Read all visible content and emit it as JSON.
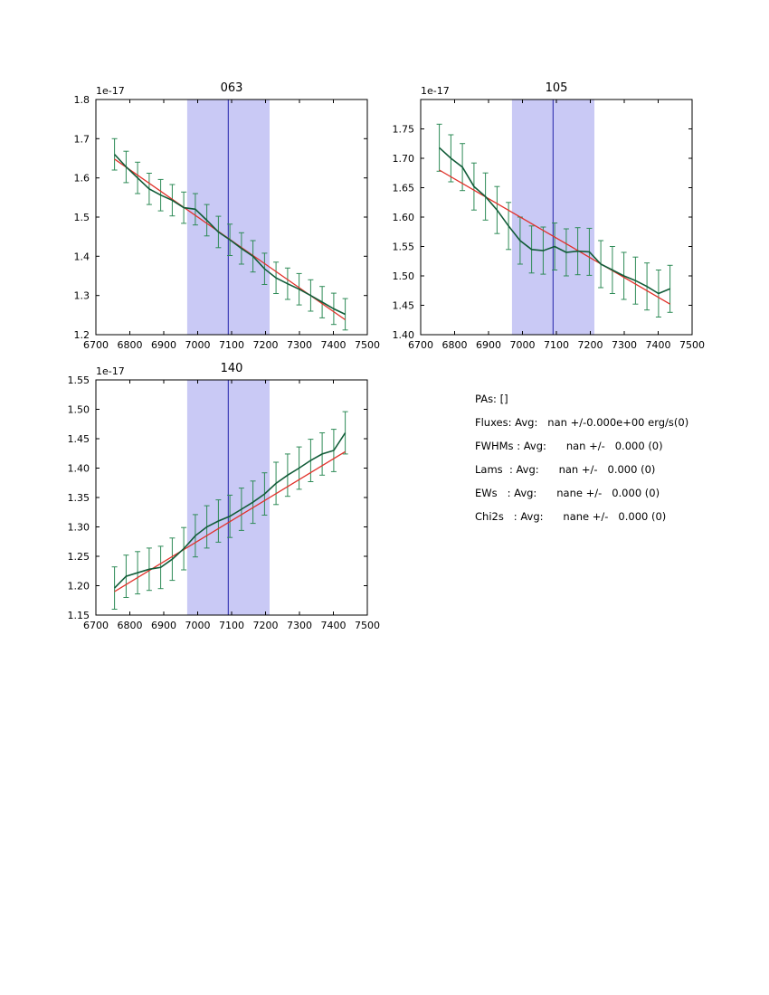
{
  "colors": {
    "data_line": "#115c38",
    "error_bar": "#2e8b57",
    "fit_line": "#e13029",
    "band_fill": "#c9c9f5",
    "vline": "#2222aa",
    "frame": "#000000"
  },
  "chart_data": [
    {
      "type": "line",
      "title": "063",
      "offset_text": "1e-17",
      "xlim": [
        6700,
        7500
      ],
      "ylim": [
        1.2,
        1.8
      ],
      "xticks": [
        6700,
        6800,
        6900,
        7000,
        7100,
        7200,
        7300,
        7400,
        7500
      ],
      "yticks": [
        1.2,
        1.3,
        1.4,
        1.5,
        1.6,
        1.7,
        1.8
      ],
      "ytick_decimals": 1,
      "band": [
        6969,
        7212
      ],
      "vline": 7090,
      "yerr": 0.04,
      "x": [
        6755,
        6789,
        6823,
        6857,
        6891,
        6925,
        6959,
        6993,
        7027,
        7061,
        7095,
        7129,
        7163,
        7197,
        7231,
        7265,
        7299,
        7333,
        7367,
        7401,
        7435
      ],
      "y": [
        1.66,
        1.628,
        1.6,
        1.572,
        1.556,
        1.543,
        1.524,
        1.52,
        1.492,
        1.462,
        1.442,
        1.42,
        1.4,
        1.368,
        1.345,
        1.33,
        1.316,
        1.3,
        1.283,
        1.266,
        1.252
      ],
      "fit": {
        "x": [
          6755,
          7435
        ],
        "y": [
          1.648,
          1.238
        ]
      }
    },
    {
      "type": "line",
      "title": "105",
      "offset_text": "1e-17",
      "xlim": [
        6700,
        7500
      ],
      "ylim": [
        1.4,
        1.8
      ],
      "xticks": [
        6700,
        6800,
        6900,
        7000,
        7100,
        7200,
        7300,
        7400,
        7500
      ],
      "yticks": [
        1.4,
        1.45,
        1.5,
        1.55,
        1.6,
        1.65,
        1.7,
        1.75
      ],
      "ytick_decimals": 2,
      "band": [
        6969,
        7212
      ],
      "vline": 7090,
      "yerr": 0.04,
      "x": [
        6755,
        6789,
        6823,
        6857,
        6891,
        6925,
        6959,
        6993,
        7027,
        7061,
        7095,
        7129,
        7163,
        7197,
        7231,
        7265,
        7299,
        7333,
        7367,
        7401,
        7435
      ],
      "y": [
        1.718,
        1.7,
        1.685,
        1.652,
        1.635,
        1.612,
        1.585,
        1.56,
        1.545,
        1.543,
        1.55,
        1.54,
        1.542,
        1.541,
        1.52,
        1.51,
        1.5,
        1.492,
        1.482,
        1.47,
        1.478
      ],
      "fit": {
        "x": [
          6755,
          7435
        ],
        "y": [
          1.68,
          1.452
        ]
      }
    },
    {
      "type": "line",
      "title": "140",
      "offset_text": "1e-17",
      "xlim": [
        6700,
        7500
      ],
      "ylim": [
        1.15,
        1.55
      ],
      "xticks": [
        6700,
        6800,
        6900,
        7000,
        7100,
        7200,
        7300,
        7400,
        7500
      ],
      "yticks": [
        1.15,
        1.2,
        1.25,
        1.3,
        1.35,
        1.4,
        1.45,
        1.5,
        1.55
      ],
      "ytick_decimals": 2,
      "band": [
        6969,
        7212
      ],
      "vline": 7090,
      "yerr": 0.036,
      "x": [
        6755,
        6789,
        6823,
        6857,
        6891,
        6925,
        6959,
        6993,
        7027,
        7061,
        7095,
        7129,
        7163,
        7197,
        7231,
        7265,
        7299,
        7333,
        7367,
        7401,
        7435
      ],
      "y": [
        1.196,
        1.216,
        1.222,
        1.228,
        1.231,
        1.245,
        1.263,
        1.285,
        1.3,
        1.31,
        1.318,
        1.33,
        1.342,
        1.356,
        1.374,
        1.388,
        1.4,
        1.413,
        1.424,
        1.43,
        1.46
      ],
      "fit": {
        "x": [
          6755,
          7435
        ],
        "y": [
          1.19,
          1.428
        ]
      }
    }
  ],
  "stats": {
    "lines": [
      "PAs: []",
      "Fluxes: Avg:   nan +/-0.000e+00 erg/s(0)",
      "FWHMs : Avg:      nan +/-   0.000 (0)",
      "Lams  : Avg:      nan +/-   0.000 (0)",
      "EWs   : Avg:      nane +/-   0.000 (0)",
      "Chi2s   : Avg:      nane +/-   0.000 (0)"
    ]
  }
}
